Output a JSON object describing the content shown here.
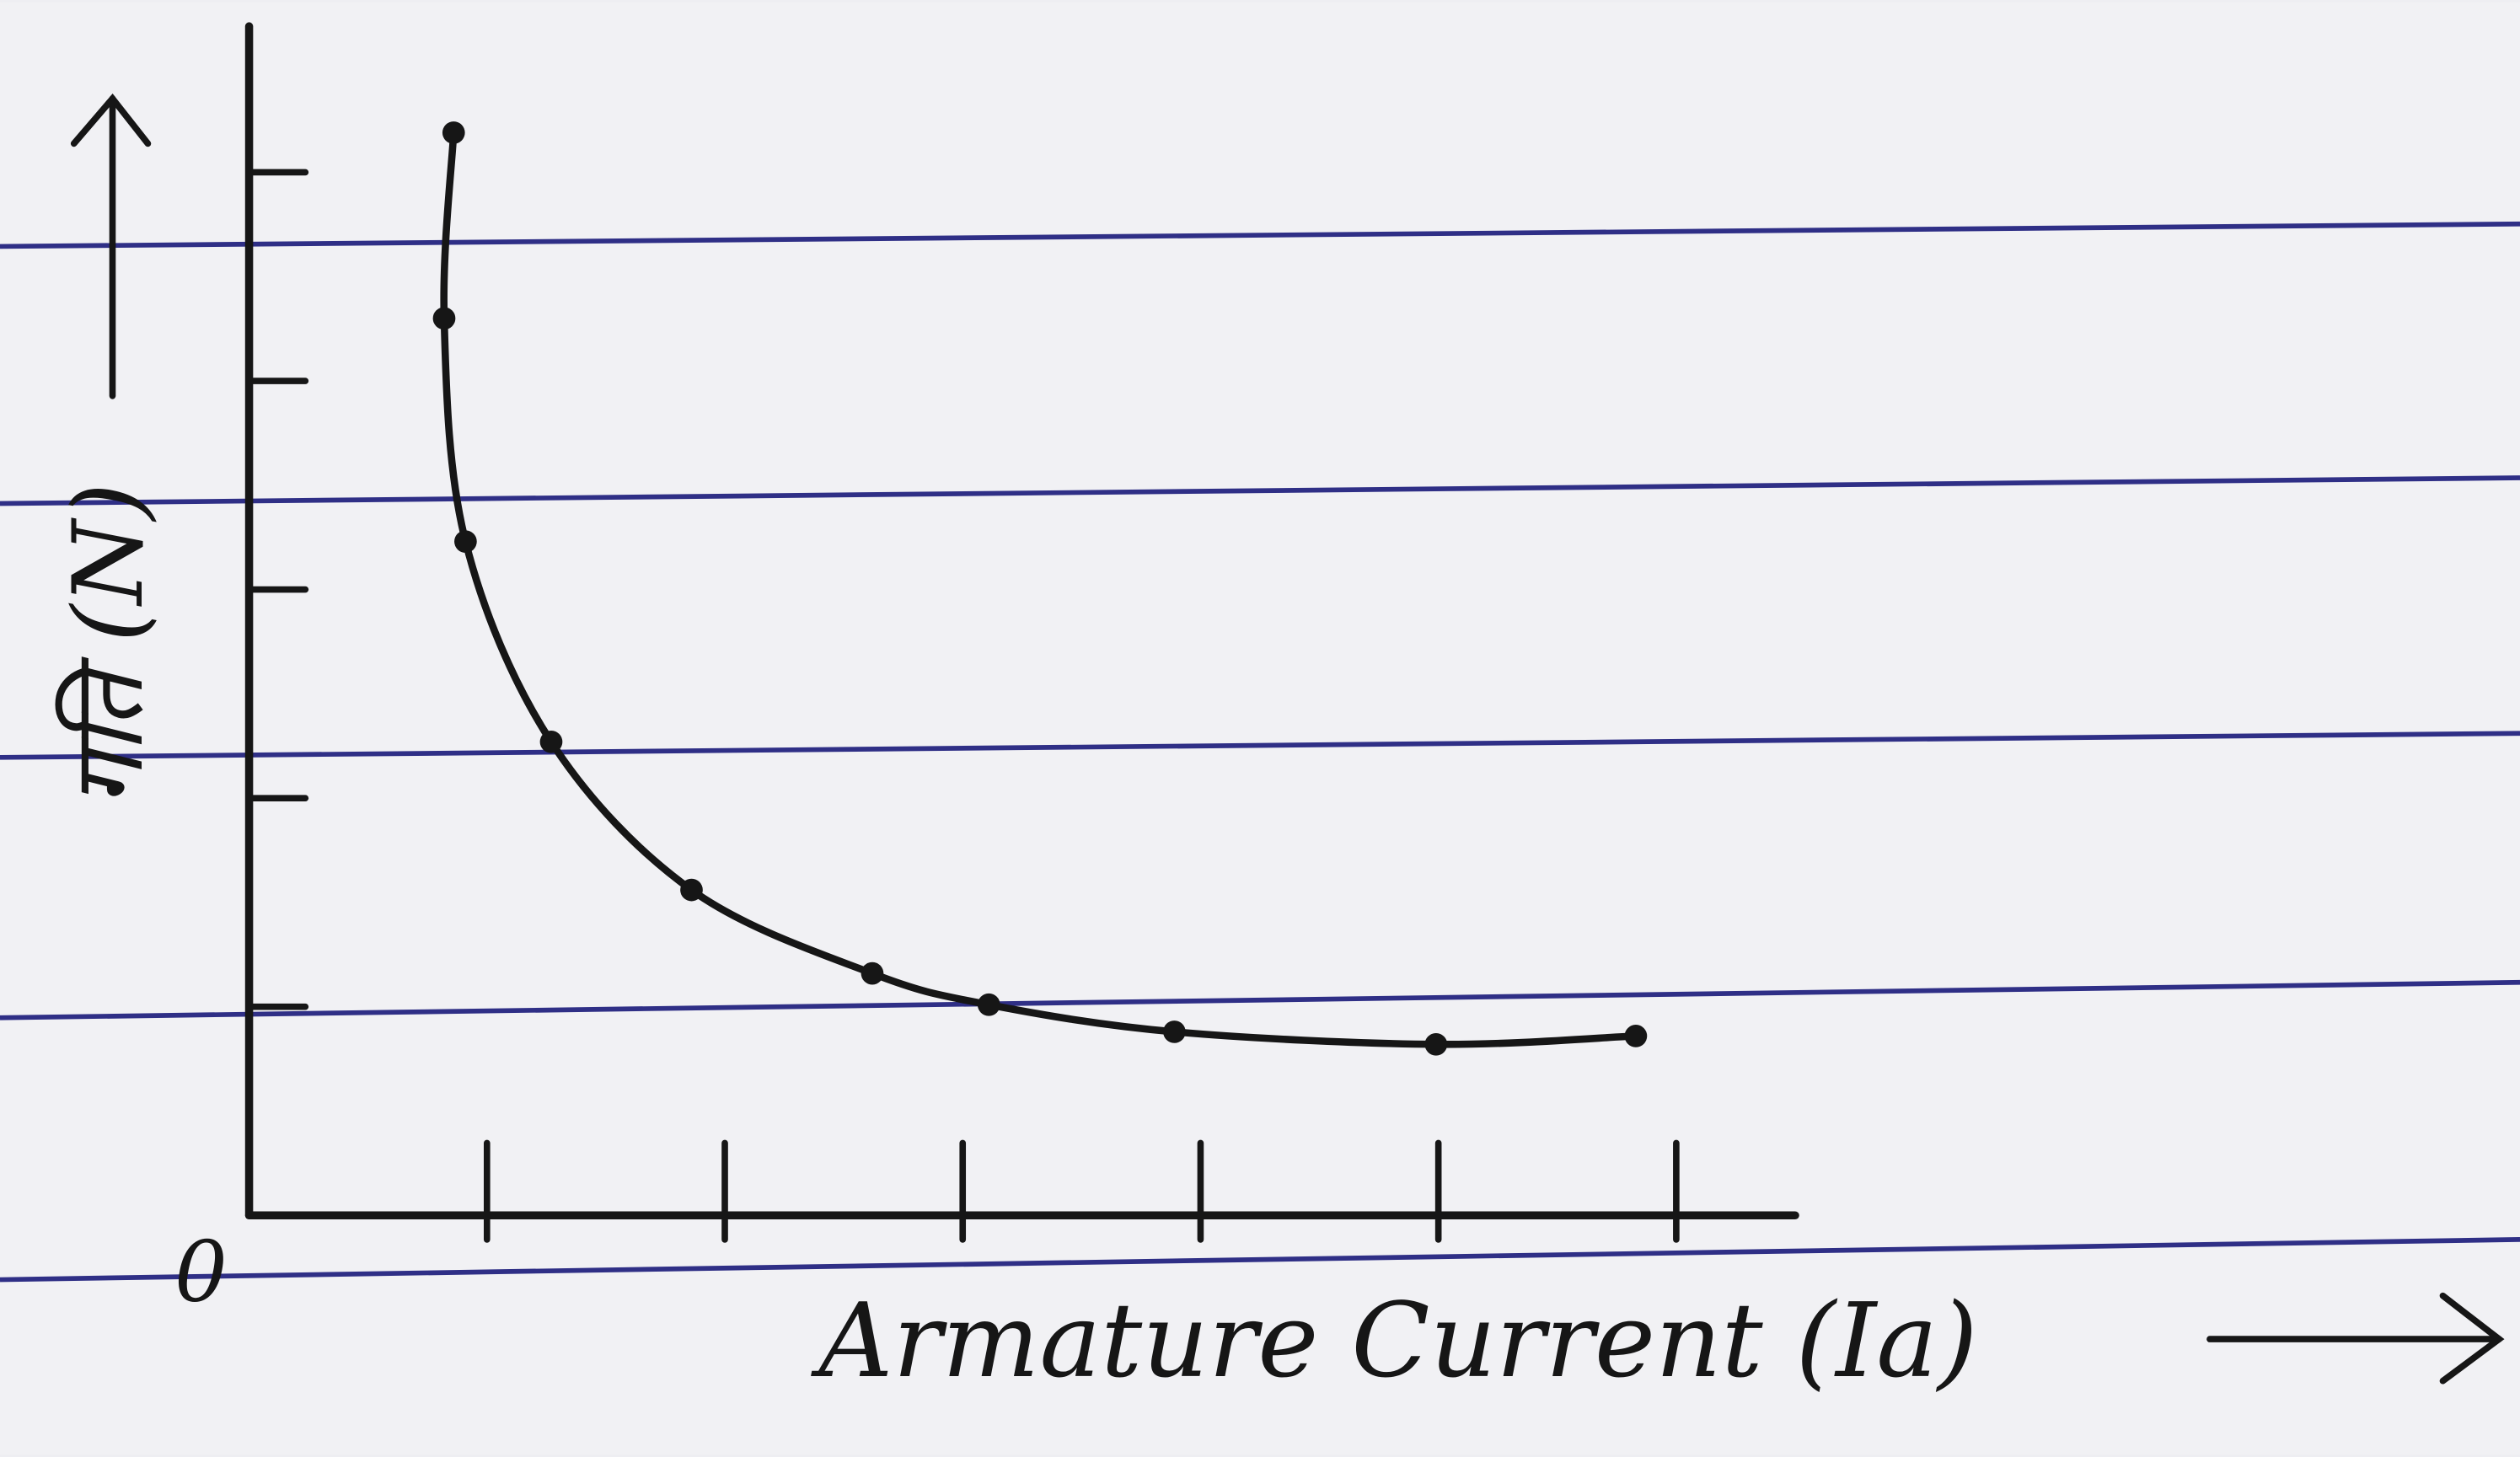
{
  "chart_data": {
    "type": "line",
    "x_label": "Armature Current (Ia)",
    "y_label": "गति (N)",
    "origin_label": "0",
    "x": [
      0.86,
      0.82,
      0.91,
      1.27,
      1.86,
      2.62,
      3.11,
      3.89,
      4.99,
      5.83
    ],
    "series": [
      {
        "color": "#161616",
        "values": [
          5.19,
          4.3,
          3.23,
          2.27,
          1.56,
          1.16,
          1.01,
          0.88,
          0.82,
          0.86
        ]
      }
    ],
    "xlim": [
      0,
      6.5
    ],
    "ylim": [
      0,
      5.7
    ],
    "xticks": [
      1,
      2,
      3,
      4,
      5,
      6
    ],
    "yticks": [
      1,
      2,
      3,
      4,
      5
    ]
  }
}
